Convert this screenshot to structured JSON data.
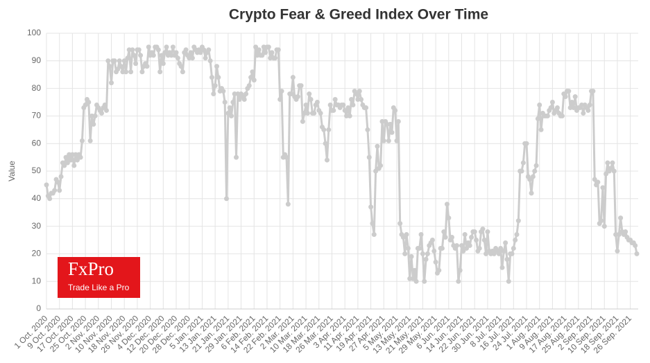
{
  "chart_data": {
    "type": "line",
    "title": "Crypto Fear & Greed Index Over Time",
    "y_label": "Value",
    "logo": {
      "name": "FxPro",
      "tagline": "Trade Like a Pro"
    },
    "ylim": [
      0,
      100
    ],
    "yticks": [
      0,
      10,
      20,
      30,
      40,
      50,
      60,
      70,
      80,
      90,
      100
    ],
    "grid": true,
    "categories": [
      "1 Oct. 2020",
      null,
      null,
      null,
      null,
      null,
      null,
      null,
      "9 Oct. 2020",
      null,
      null,
      null,
      null,
      null,
      null,
      null,
      "17 Oct. 2020",
      null,
      null,
      null,
      null,
      null,
      null,
      null,
      "25 Oct. 2020",
      null,
      null,
      null,
      null,
      null,
      null,
      null,
      "2 Nov. 2020",
      null,
      null,
      null,
      null,
      null,
      null,
      null,
      "10 Nov. 2020",
      null,
      null,
      null,
      null,
      null,
      null,
      null,
      "18 Nov. 2020",
      null,
      null,
      null,
      null,
      null,
      null,
      null,
      "26 Nov. 2020",
      null,
      null,
      null,
      null,
      null,
      null,
      null,
      "4 Dec. 2020",
      null,
      null,
      null,
      null,
      null,
      null,
      null,
      "12 Dec. 2020",
      null,
      null,
      null,
      null,
      null,
      null,
      null,
      "20 Dec. 2020",
      null,
      null,
      null,
      null,
      null,
      null,
      null,
      "28 Dec. 2020",
      null,
      null,
      null,
      null,
      null,
      null,
      null,
      "5 Jan. 2021",
      null,
      null,
      null,
      null,
      null,
      null,
      null,
      "13 Jan. 2021",
      null,
      null,
      null,
      null,
      null,
      null,
      null,
      "21 Jan. 2021",
      null,
      null,
      null,
      null,
      null,
      null,
      null,
      "29 Jan. 2021",
      null,
      null,
      null,
      null,
      null,
      null,
      null,
      "6 Feb. 2021",
      null,
      null,
      null,
      null,
      null,
      null,
      null,
      "14 Feb. 2021",
      null,
      null,
      null,
      null,
      null,
      null,
      null,
      "22 Feb. 2021",
      null,
      null,
      null,
      null,
      null,
      null,
      null,
      "2 Mar. 2021",
      null,
      null,
      null,
      null,
      null,
      null,
      null,
      "10 Mar. 2021",
      null,
      null,
      null,
      null,
      null,
      null,
      null,
      "18 Mar. 2021",
      null,
      null,
      null,
      null,
      null,
      null,
      null,
      "26 Mar. 2021",
      null,
      null,
      null,
      null,
      null,
      null,
      null,
      "3 Apr. 2021",
      null,
      null,
      null,
      null,
      null,
      null,
      null,
      "11 Apr. 2021",
      null,
      null,
      null,
      null,
      null,
      null,
      null,
      "19 Apr. 2021",
      null,
      null,
      null,
      null,
      null,
      null,
      null,
      "27 Apr. 2021",
      null,
      null,
      null,
      null,
      null,
      null,
      null,
      "5 May. 2021",
      null,
      null,
      null,
      null,
      null,
      null,
      null,
      "13 May. 2021",
      null,
      null,
      null,
      null,
      null,
      null,
      null,
      "21 May. 2021",
      null,
      null,
      null,
      null,
      null,
      null,
      null,
      "29 May. 2021",
      null,
      null,
      null,
      null,
      null,
      null,
      null,
      "6 Jun. 2021",
      null,
      null,
      null,
      null,
      null,
      null,
      null,
      "14 Jun. 2021",
      null,
      null,
      null,
      null,
      null,
      null,
      null,
      "22 Jun. 2021",
      null,
      null,
      null,
      null,
      null,
      null,
      null,
      "30 Jun. 2021",
      null,
      null,
      null,
      null,
      null,
      null,
      null,
      "8 Jul. 2021",
      null,
      null,
      null,
      null,
      null,
      null,
      null,
      "16 Jul. 2021",
      null,
      null,
      null,
      null,
      null,
      null,
      null,
      "24 Jul. 2021",
      null,
      null,
      null,
      null,
      null,
      null,
      null,
      "1 Aug. 2021",
      null,
      null,
      null,
      null,
      null,
      null,
      null,
      "9 Aug. 2021",
      null,
      null,
      null,
      null,
      null,
      null,
      null,
      "17 Aug. 2021",
      null,
      null,
      null,
      null,
      null,
      null,
      null,
      "25 Aug. 2021",
      null,
      null,
      null,
      null,
      null,
      null,
      null,
      "2 Sep. 2021",
      null,
      null,
      null,
      null,
      null,
      null,
      null,
      "10 Sep. 2021",
      null,
      null,
      null,
      null,
      null,
      null,
      null,
      "18 Sep. 2021",
      null,
      null,
      null,
      null,
      null,
      null,
      null,
      "26 Sep. 2021",
      null,
      null,
      null,
      null
    ],
    "series": [
      {
        "name": "Value",
        "color": "#cccccc",
        "values": [
          45,
          41,
          40,
          42,
          42,
          43,
          47,
          46,
          43,
          48,
          53,
          52,
          55,
          53,
          56,
          54,
          56,
          52,
          56,
          54,
          56,
          55,
          61,
          73,
          74,
          76,
          75,
          61,
          70,
          67,
          70,
          74,
          73,
          72,
          71,
          73,
          74,
          72,
          90,
          88,
          82,
          90,
          90,
          86,
          87,
          90,
          88,
          86,
          90,
          86,
          91,
          94,
          86,
          94,
          92,
          89,
          94,
          94,
          92,
          86,
          88,
          89,
          88,
          95,
          92,
          93,
          92,
          95,
          95,
          94,
          86,
          92,
          89,
          93,
          95,
          92,
          93,
          92,
          95,
          92,
          93,
          91,
          89,
          88,
          86,
          93,
          94,
          92,
          91,
          93,
          91,
          95,
          94,
          93,
          94,
          93,
          95,
          94,
          91,
          93,
          94,
          90,
          84,
          78,
          81,
          88,
          84,
          79,
          80,
          79,
          75,
          40,
          71,
          73,
          70,
          75,
          78,
          55,
          78,
          76,
          78,
          77,
          76,
          78,
          80,
          81,
          84,
          86,
          83,
          95,
          92,
          94,
          92,
          92,
          95,
          93,
          95,
          95,
          91,
          93,
          91,
          91,
          94,
          94,
          76,
          79,
          55,
          56,
          55,
          38,
          78,
          78,
          84,
          77,
          76,
          77,
          81,
          81,
          68,
          71,
          74,
          71,
          78,
          76,
          71,
          71,
          74,
          75,
          72,
          71,
          66,
          65,
          60,
          54,
          65,
          74,
          72,
          72,
          76,
          74,
          74,
          73,
          74,
          74,
          72,
          70,
          73,
          70,
          76,
          74,
          79,
          78,
          76,
          79,
          76,
          74,
          73,
          73,
          65,
          55,
          37,
          31,
          27,
          50,
          59,
          51,
          52,
          68,
          61,
          68,
          67,
          61,
          67,
          64,
          73,
          72,
          61,
          68,
          31,
          27,
          26,
          20,
          27,
          22,
          11,
          19,
          11,
          14,
          10,
          22,
          22,
          27,
          20,
          10,
          18,
          20,
          23,
          24,
          25,
          21,
          17,
          13,
          14,
          22,
          22,
          28,
          26,
          38,
          33,
          25,
          26,
          23,
          22,
          23,
          10,
          14,
          23,
          21,
          27,
          22,
          24,
          23,
          26,
          28,
          28,
          25,
          21,
          22,
          28,
          29,
          25,
          20,
          28,
          21,
          20,
          21,
          20,
          22,
          21,
          20,
          22,
          15,
          21,
          24,
          18,
          10,
          20,
          20,
          22,
          25,
          27,
          32,
          50,
          50,
          53,
          60,
          60,
          48,
          47,
          42,
          48,
          50,
          52,
          69,
          74,
          65,
          71,
          70,
          70,
          70,
          72,
          73,
          75,
          71,
          72,
          73,
          71,
          70,
          70,
          78,
          77,
          79,
          79,
          73,
          75,
          73,
          77,
          72,
          73,
          73,
          74,
          71,
          74,
          73,
          72,
          74,
          79,
          79,
          47,
          45,
          46,
          31,
          32,
          44,
          30,
          49,
          53,
          50,
          51,
          53,
          50,
          27,
          21,
          27,
          33,
          28,
          27,
          28,
          26,
          25,
          25,
          24,
          24,
          23,
          20
        ]
      }
    ]
  }
}
